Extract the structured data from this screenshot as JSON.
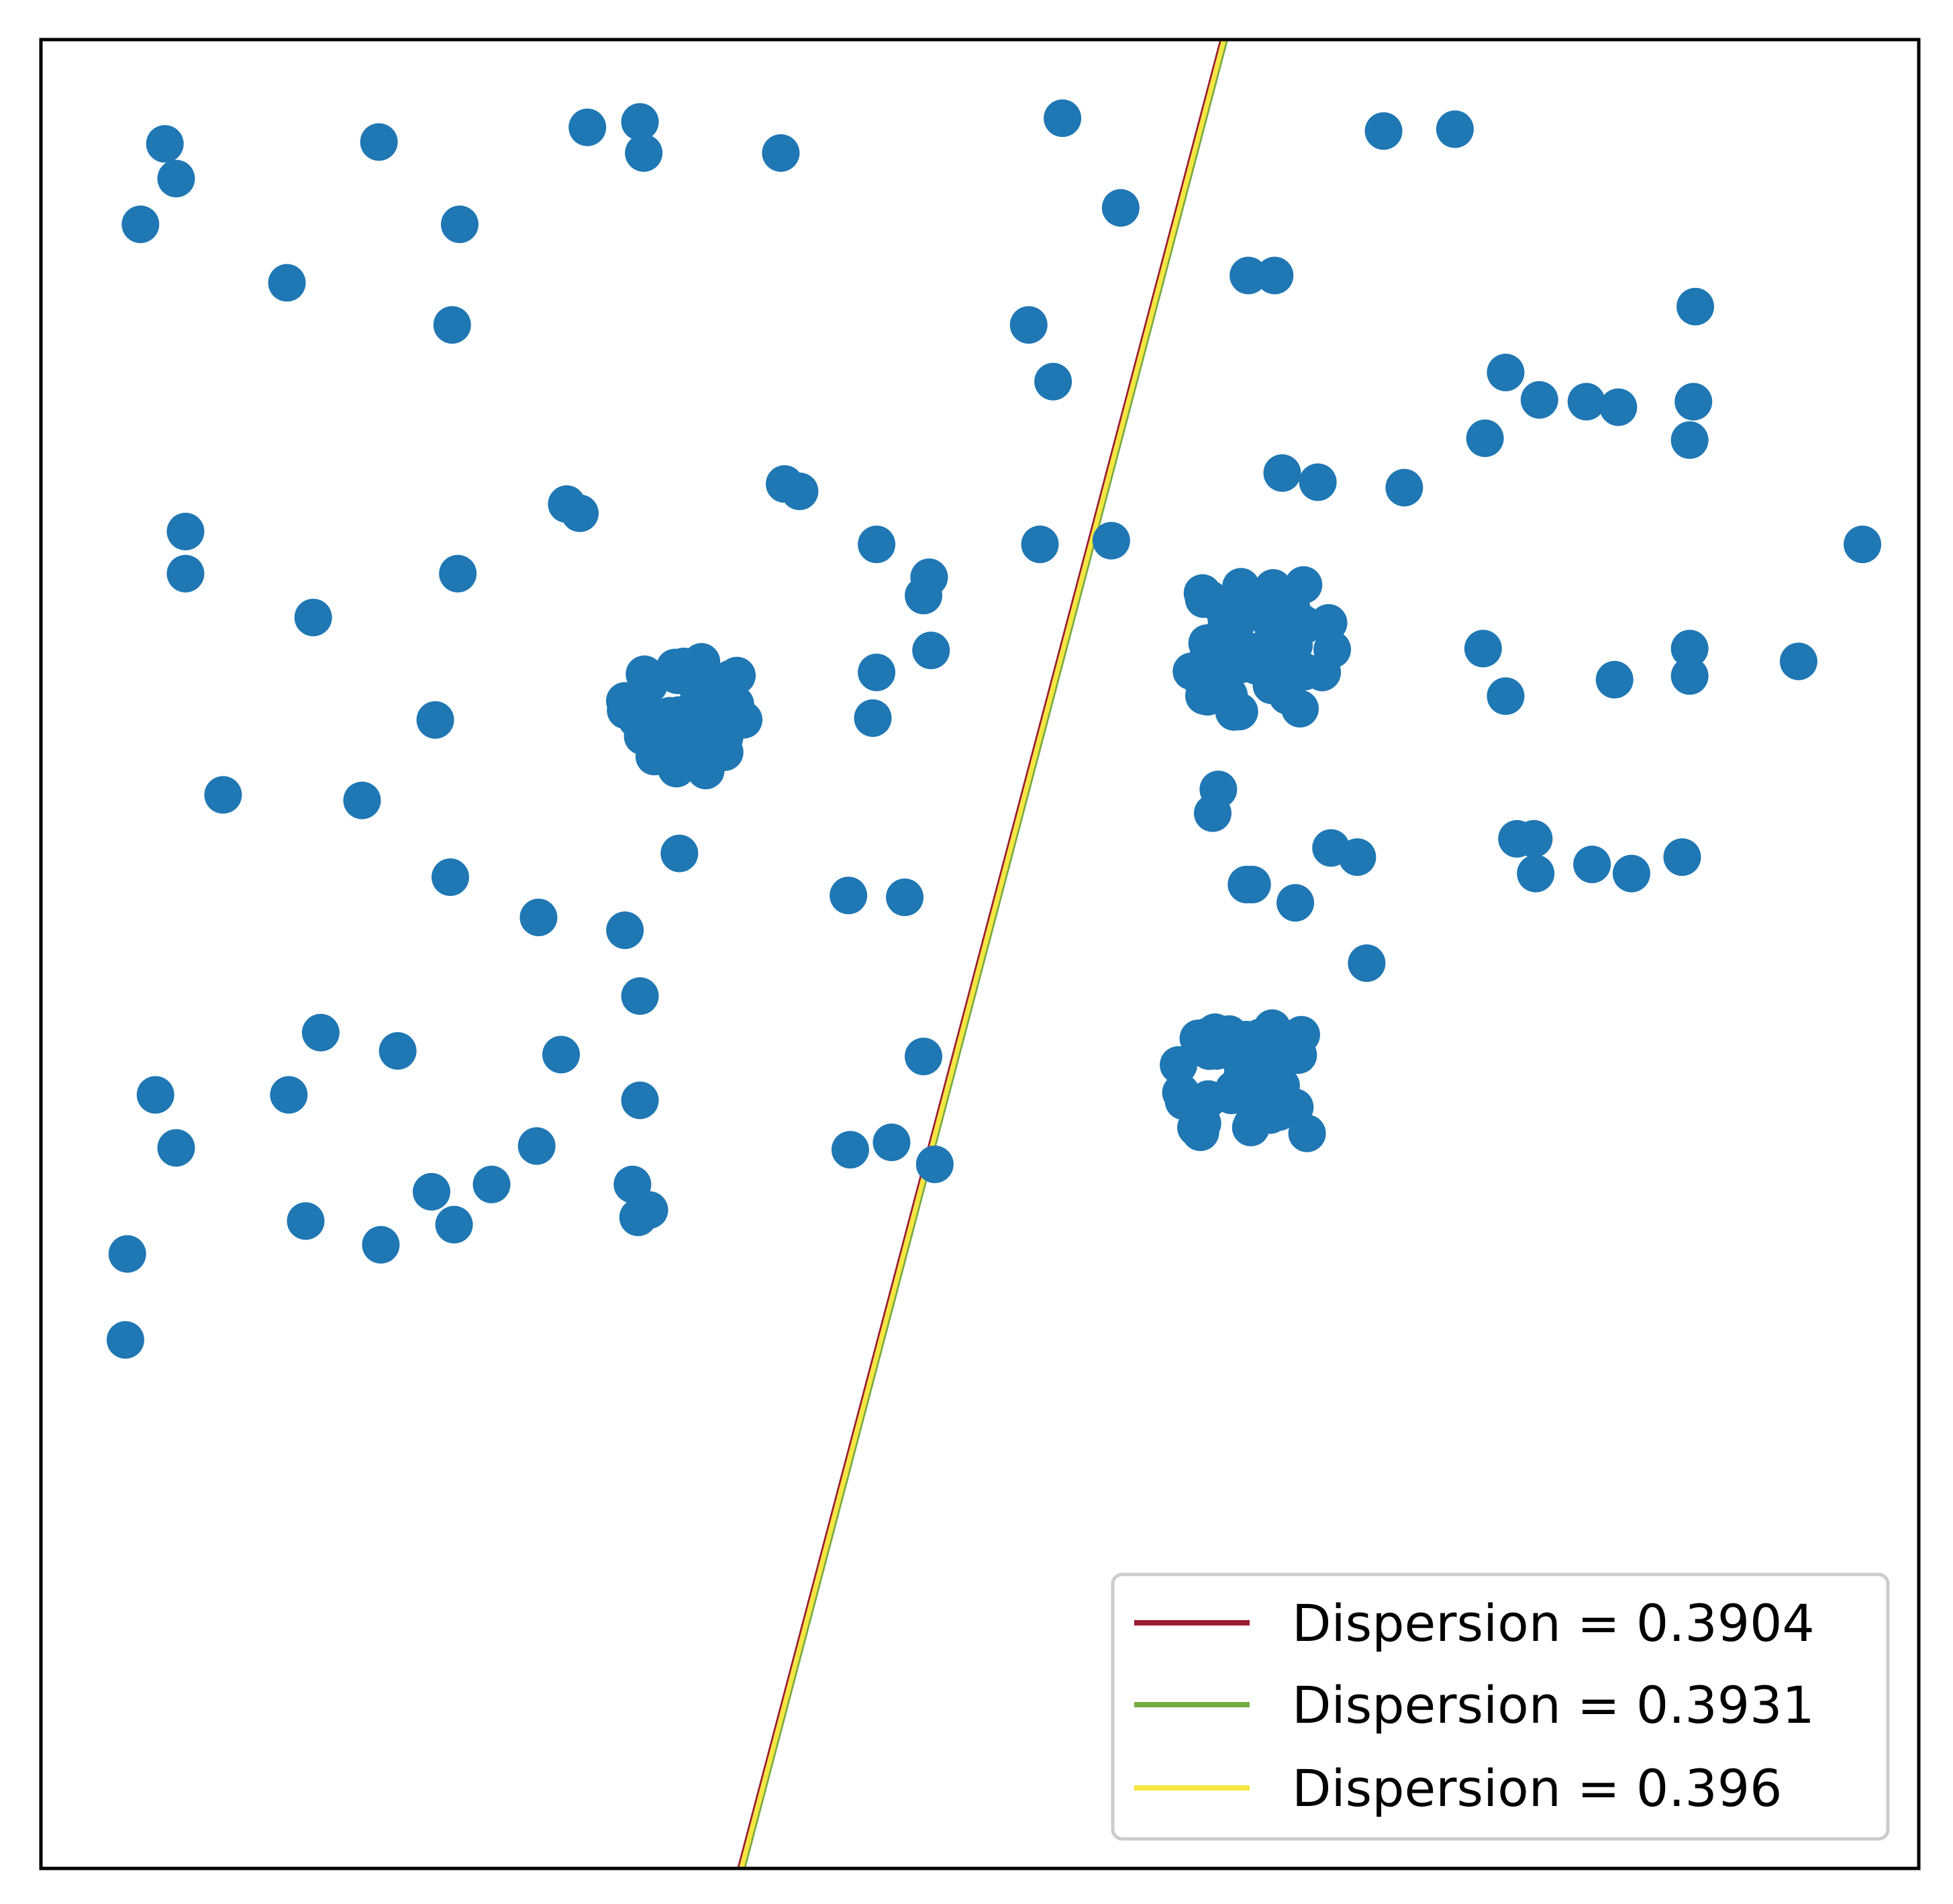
{
  "chart_data": {
    "type": "scatter",
    "title": "",
    "xlabel": "",
    "ylabel": "",
    "xlim": [
      0,
      1
    ],
    "ylim": [
      0,
      1
    ],
    "grid": false,
    "ticks_visible": false,
    "point_color": "#1f77b4",
    "points": [
      [
        0.066,
        0.943
      ],
      [
        0.072,
        0.924
      ],
      [
        0.053,
        0.899
      ],
      [
        0.18,
        0.944
      ],
      [
        0.291,
        0.952
      ],
      [
        0.319,
        0.955
      ],
      [
        0.321,
        0.938
      ],
      [
        0.394,
        0.938
      ],
      [
        0.223,
        0.899
      ],
      [
        0.131,
        0.867
      ],
      [
        0.219,
        0.844
      ],
      [
        0.544,
        0.957
      ],
      [
        0.575,
        0.908
      ],
      [
        0.715,
        0.95
      ],
      [
        0.753,
        0.951
      ],
      [
        0.643,
        0.871
      ],
      [
        0.657,
        0.871
      ],
      [
        0.881,
        0.854
      ],
      [
        0.526,
        0.844
      ],
      [
        0.539,
        0.813
      ],
      [
        0.78,
        0.818
      ],
      [
        0.769,
        0.782
      ],
      [
        0.823,
        0.802
      ],
      [
        0.878,
        0.781
      ],
      [
        0.798,
        0.803
      ],
      [
        0.84,
        0.799
      ],
      [
        0.88,
        0.802
      ],
      [
        0.726,
        0.755
      ],
      [
        0.661,
        0.763
      ],
      [
        0.68,
        0.758
      ],
      [
        0.396,
        0.757
      ],
      [
        0.404,
        0.753
      ],
      [
        0.28,
        0.746
      ],
      [
        0.287,
        0.741
      ],
      [
        0.077,
        0.731
      ],
      [
        0.077,
        0.708
      ],
      [
        0.222,
        0.708
      ],
      [
        0.145,
        0.684
      ],
      [
        0.445,
        0.724
      ],
      [
        0.473,
        0.706
      ],
      [
        0.532,
        0.724
      ],
      [
        0.57,
        0.726
      ],
      [
        0.78,
        0.641
      ],
      [
        0.474,
        0.666
      ],
      [
        0.47,
        0.696
      ],
      [
        0.445,
        0.654
      ],
      [
        0.443,
        0.629
      ],
      [
        0.768,
        0.667
      ],
      [
        0.878,
        0.667
      ],
      [
        0.936,
        0.66
      ],
      [
        0.838,
        0.65
      ],
      [
        0.878,
        0.652
      ],
      [
        0.97,
        0.724
      ],
      [
        0.21,
        0.628
      ],
      [
        0.097,
        0.587
      ],
      [
        0.171,
        0.584
      ],
      [
        0.218,
        0.542
      ],
      [
        0.34,
        0.555
      ],
      [
        0.265,
        0.52
      ],
      [
        0.311,
        0.513
      ],
      [
        0.319,
        0.477
      ],
      [
        0.627,
        0.59
      ],
      [
        0.687,
        0.558
      ],
      [
        0.624,
        0.577
      ],
      [
        0.642,
        0.538
      ],
      [
        0.668,
        0.528
      ],
      [
        0.645,
        0.538
      ],
      [
        0.701,
        0.553
      ],
      [
        0.43,
        0.532
      ],
      [
        0.46,
        0.531
      ],
      [
        0.786,
        0.563
      ],
      [
        0.795,
        0.563
      ],
      [
        0.796,
        0.544
      ],
      [
        0.826,
        0.549
      ],
      [
        0.847,
        0.544
      ],
      [
        0.874,
        0.553
      ],
      [
        0.706,
        0.495
      ],
      [
        0.47,
        0.444
      ],
      [
        0.149,
        0.457
      ],
      [
        0.19,
        0.447
      ],
      [
        0.061,
        0.423
      ],
      [
        0.072,
        0.394
      ],
      [
        0.132,
        0.423
      ],
      [
        0.277,
        0.445
      ],
      [
        0.319,
        0.42
      ],
      [
        0.208,
        0.37
      ],
      [
        0.24,
        0.374
      ],
      [
        0.264,
        0.395
      ],
      [
        0.315,
        0.374
      ],
      [
        0.431,
        0.393
      ],
      [
        0.453,
        0.397
      ],
      [
        0.476,
        0.385
      ],
      [
        0.141,
        0.354
      ],
      [
        0.181,
        0.341
      ],
      [
        0.22,
        0.352
      ],
      [
        0.318,
        0.356
      ],
      [
        0.046,
        0.336
      ],
      [
        0.045,
        0.289
      ],
      [
        0.324,
        0.36
      ]
    ],
    "clusters": [
      {
        "center": [
          0.343,
          0.63
        ],
        "spread": [
          0.033,
          0.03
        ],
        "count": 45
      },
      {
        "center": [
          0.65,
          0.667
        ],
        "spread": [
          0.038,
          0.035
        ],
        "count": 55
      },
      {
        "center": [
          0.64,
          0.43
        ],
        "spread": [
          0.036,
          0.03
        ],
        "count": 40
      }
    ],
    "lines": [
      {
        "name": "Dispersion = 0.3904",
        "color": "#9b1b30",
        "p1": [
          0.372,
          0.0
        ],
        "p2": [
          0.629,
          1.0
        ]
      },
      {
        "name": "Dispersion = 0.3931",
        "color": "#77ab43",
        "p1": [
          0.374,
          0.0
        ],
        "p2": [
          0.631,
          1.0
        ]
      },
      {
        "name": "Dispersion = 0.396",
        "color": "#f5e642",
        "p1": [
          0.373,
          0.0
        ],
        "p2": [
          0.63,
          1.0
        ]
      }
    ],
    "legend": {
      "placement": "lower-right",
      "entries": [
        "Dispersion = 0.3904",
        "Dispersion = 0.3931",
        "Dispersion = 0.396"
      ]
    }
  }
}
